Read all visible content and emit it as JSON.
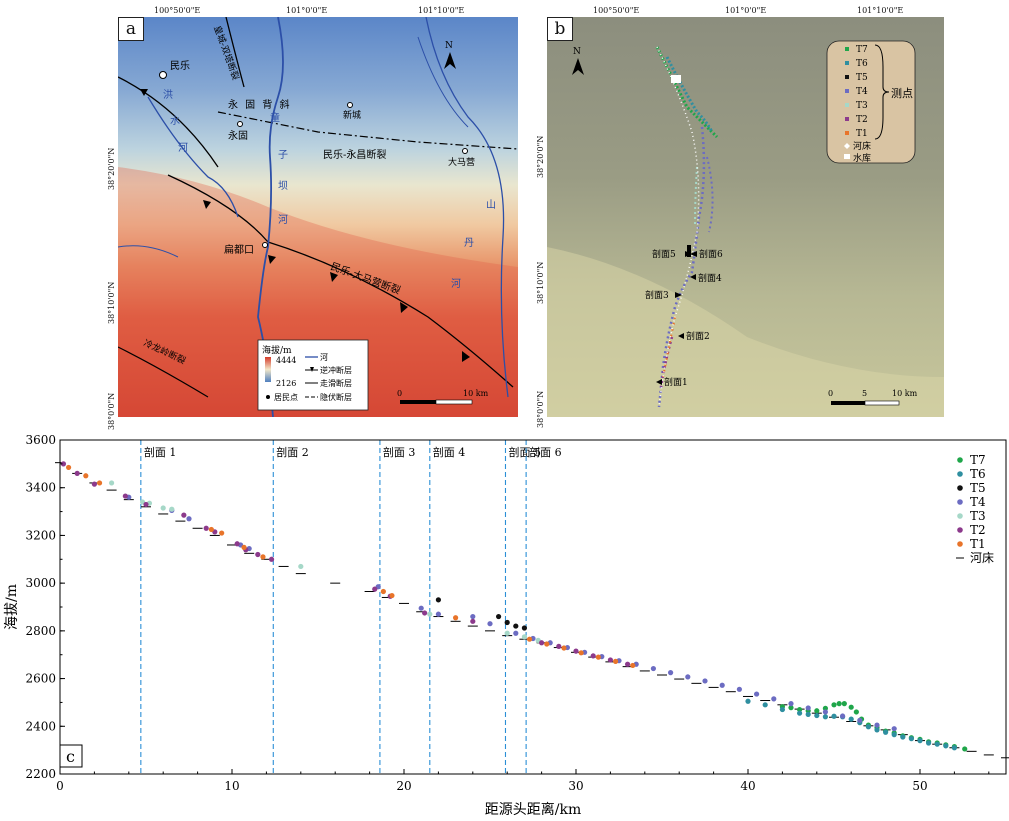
{
  "panel_a": {
    "label": "a",
    "lon_ticks": [
      "100°50'0\"E",
      "101°0'0\"E",
      "101°10'0\"E"
    ],
    "lat_ticks": [
      "38°20'0\"N",
      "38°10'0\"N",
      "38°0'0\"N"
    ],
    "place_names": {
      "minle": "民乐",
      "yonggu": "永固",
      "bianduokou": "扁都口",
      "xincheng": "新城",
      "damaying": "大马营",
      "yonggu_syncline": "永 固 背 斜"
    },
    "rivers": {
      "hongshui": [
        "洪",
        "水",
        "河"
      ],
      "tongzi": [
        "童",
        "子",
        "坝",
        "河"
      ],
      "shandan": [
        "山",
        "丹",
        "河"
      ]
    },
    "faults": {
      "minle_yongchang": "民乐-永昌断裂",
      "minle_damaying": "民乐-大马营断裂",
      "huangcheng": "皇城-双塔断裂",
      "lenglongling": "冷龙岭断裂"
    },
    "north": "N",
    "scale": {
      "zero": "0",
      "ten": "10 km"
    },
    "legend": {
      "title": "海拔/m",
      "max": "4444",
      "min": "2126",
      "river": "河",
      "thrust": "逆冲断层",
      "strike_slip": "走滑断层",
      "settlement": "居民点",
      "hidden": "隐伏断层"
    }
  },
  "panel_b": {
    "label": "b",
    "lon_ticks": [
      "100°50'0\"E",
      "101°0'0\"E",
      "101°10'0\"E"
    ],
    "lat_ticks": [
      "38°20'0\"N",
      "38°10'0\"N",
      "38°0'0\"N"
    ],
    "north": "N",
    "legend": {
      "items": [
        "T7",
        "T6",
        "T5",
        "T4",
        "T3",
        "T2",
        "T1"
      ],
      "group": "测点",
      "riverbed": "河床",
      "reservoir": "水库"
    },
    "sections": [
      "剖面1",
      "剖面2",
      "剖面3",
      "剖面4",
      "剖面5",
      "剖面6"
    ],
    "scale": {
      "zero": "0",
      "five": "5",
      "ten": "10 km"
    }
  },
  "panel_c": {
    "label": "c",
    "legend_riverbed": "河床"
  },
  "colors": {
    "T7": "#1fa64a",
    "T6": "#2f8fa0",
    "T5": "#111111",
    "T4": "#6c6cc2",
    "T3": "#a6d8c8",
    "T2": "#8c3a8c",
    "T1": "#e8742a",
    "section_line": "#2b8fd6"
  },
  "chart_data": {
    "type": "scatter",
    "title": "",
    "xlabel": "距源头距离/km",
    "ylabel": "海拔/m",
    "xlim": [
      0,
      55
    ],
    "ylim": [
      2200,
      3600
    ],
    "xticks": [
      0,
      10,
      20,
      30,
      40,
      50
    ],
    "yticks": [
      2200,
      2400,
      2600,
      2800,
      3000,
      3200,
      3400,
      3600
    ],
    "legend_position": "right",
    "sections": [
      {
        "name": "剖面 1",
        "x": 4.7
      },
      {
        "name": "剖面 2",
        "x": 12.4
      },
      {
        "name": "剖面 3",
        "x": 18.6
      },
      {
        "name": "剖面 4",
        "x": 21.5
      },
      {
        "name": "剖面 5",
        "x": 25.9
      },
      {
        "name": "剖面 6",
        "x": 27.1
      }
    ],
    "riverbed": {
      "name": "河床",
      "x": [
        0,
        1,
        2,
        3,
        4,
        5,
        6,
        7,
        8,
        9,
        10,
        11,
        12,
        13,
        14,
        16,
        18,
        19,
        20,
        21,
        22,
        23,
        24,
        25,
        26,
        27,
        28,
        29,
        30,
        31,
        32,
        33,
        34,
        35,
        36,
        37,
        38,
        39,
        40,
        41,
        42,
        43,
        44,
        45,
        46,
        47,
        48,
        49,
        50,
        51,
        52,
        53,
        54,
        55
      ],
      "y": [
        3505,
        3460,
        3420,
        3390,
        3350,
        3320,
        3290,
        3260,
        3230,
        3200,
        3160,
        3125,
        3100,
        3070,
        3040,
        3000,
        2965,
        2940,
        2915,
        2880,
        2860,
        2840,
        2820,
        2800,
        2780,
        2765,
        2750,
        2730,
        2710,
        2690,
        2670,
        2650,
        2632,
        2615,
        2598,
        2580,
        2563,
        2545,
        2525,
        2508,
        2490,
        2472,
        2455,
        2438,
        2420,
        2402,
        2385,
        2365,
        2340,
        2325,
        2310,
        2295,
        2280,
        2268
      ]
    },
    "series": [
      {
        "name": "T7",
        "x": [
          42.0,
          42.5,
          43.0,
          43.5,
          44.0,
          44.5,
          45.0,
          45.3,
          45.6,
          46.0,
          46.3,
          46.6,
          47.0,
          47.5,
          48.0,
          48.5,
          49.0,
          49.5,
          50.0,
          50.5,
          51.0,
          51.5,
          52.0,
          52.6
        ],
        "y": [
          2482,
          2478,
          2470,
          2465,
          2465,
          2475,
          2490,
          2495,
          2495,
          2480,
          2460,
          2430,
          2405,
          2395,
          2380,
          2372,
          2360,
          2352,
          2345,
          2335,
          2330,
          2322,
          2315,
          2305
        ]
      },
      {
        "name": "T6",
        "x": [
          40.0,
          41.0,
          42.0,
          43.0,
          43.5,
          44.0,
          44.5,
          45.0,
          45.5,
          46.0,
          46.5,
          47.0,
          47.5,
          48.0,
          48.5,
          49.0,
          49.5,
          50.0,
          50.5,
          51.0,
          51.5,
          52.0
        ],
        "y": [
          2505,
          2490,
          2470,
          2455,
          2450,
          2445,
          2440,
          2442,
          2440,
          2430,
          2415,
          2398,
          2385,
          2375,
          2365,
          2355,
          2348,
          2340,
          2330,
          2325,
          2318,
          2310
        ]
      },
      {
        "name": "T5",
        "x": [
          22.0,
          25.5,
          26.0,
          26.5,
          27.0
        ],
        "y": [
          2930,
          2860,
          2835,
          2820,
          2812
        ]
      },
      {
        "name": "T4",
        "x": [
          4.0,
          6.5,
          7.5,
          10.5,
          11.0,
          18.5,
          21.0,
          22.0,
          24.0,
          25.0,
          26.5,
          27.5,
          28.5,
          29.5,
          30.5,
          31.5,
          32.5,
          33.5,
          34.5,
          35.5,
          36.5,
          37.5,
          38.5,
          39.5,
          40.5,
          41.5,
          42.5,
          43.5,
          44.5,
          45.5,
          46.5,
          47.5,
          48.5
        ],
        "y": [
          3360,
          3305,
          3270,
          3160,
          3145,
          2985,
          2895,
          2870,
          2860,
          2830,
          2790,
          2768,
          2750,
          2730,
          2710,
          2692,
          2675,
          2660,
          2642,
          2625,
          2607,
          2590,
          2572,
          2555,
          2535,
          2515,
          2495,
          2477,
          2460,
          2443,
          2425,
          2405,
          2390
        ]
      },
      {
        "name": "T3",
        "x": [
          3.0,
          4.8,
          5.2,
          6.0,
          6.5,
          14.0,
          21.5,
          26.0,
          27.0,
          27.8
        ],
        "y": [
          3420,
          3340,
          3335,
          3315,
          3310,
          3070,
          2870,
          2790,
          2775,
          2760
        ]
      },
      {
        "name": "T2",
        "x": [
          0.2,
          1.0,
          2.0,
          3.8,
          5.0,
          7.2,
          8.5,
          9.0,
          10.3,
          10.8,
          11.5,
          12.3,
          18.3,
          19.2,
          21.2,
          24.0,
          28.0,
          29.0,
          30.0,
          31.0,
          32.0,
          33.0
        ],
        "y": [
          3500,
          3460,
          3415,
          3365,
          3330,
          3285,
          3230,
          3215,
          3165,
          3140,
          3120,
          3100,
          2975,
          2945,
          2875,
          2840,
          2750,
          2735,
          2715,
          2695,
          2678,
          2660
        ]
      },
      {
        "name": "T1",
        "x": [
          0.5,
          1.5,
          2.3,
          8.8,
          9.4,
          10.7,
          11.8,
          18.8,
          19.3,
          23.0,
          27.3,
          28.3,
          29.3,
          30.3,
          31.3,
          32.3,
          33.3
        ],
        "y": [
          3485,
          3450,
          3420,
          3225,
          3210,
          3150,
          3110,
          2965,
          2948,
          2855,
          2765,
          2745,
          2728,
          2708,
          2690,
          2672,
          2655
        ]
      }
    ]
  }
}
